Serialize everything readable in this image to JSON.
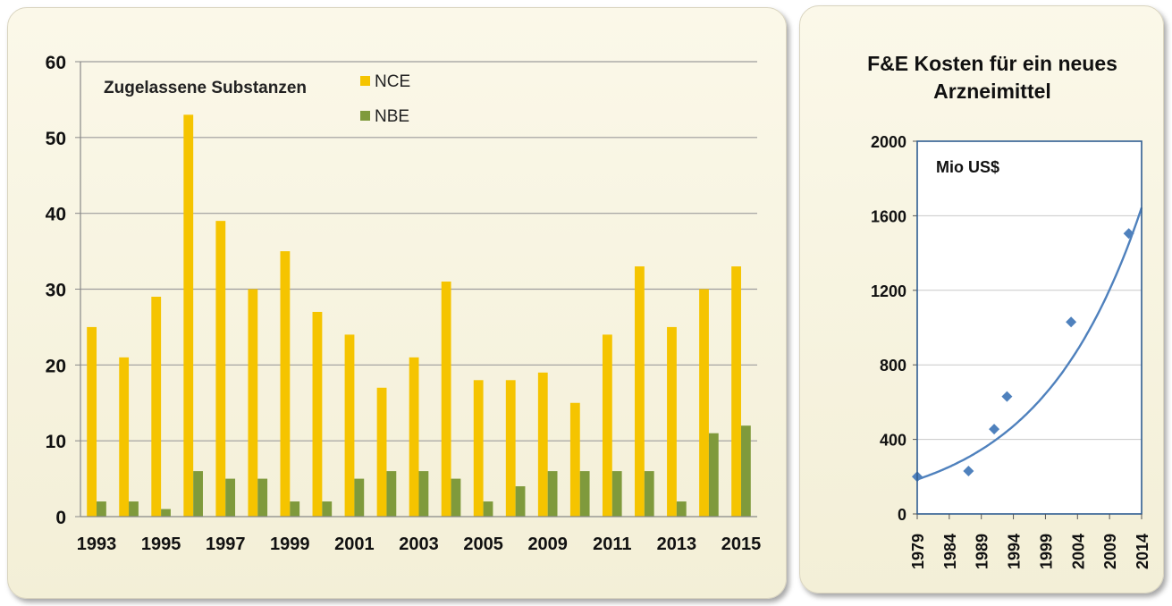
{
  "chart_data": [
    {
      "type": "bar",
      "title": "",
      "annotation": "Zugelassene Substanzen",
      "categories": [
        "1993",
        "1994",
        "1995",
        "1996",
        "1997",
        "1998",
        "1999",
        "2000",
        "2001",
        "2002",
        "2003",
        "2004",
        "2005",
        "2006",
        "2009",
        "2010",
        "2011",
        "2012",
        "2013",
        "2014",
        "2015"
      ],
      "x_tick_labels": [
        "1993",
        "1995",
        "1997",
        "1999",
        "2001",
        "2003",
        "2005",
        "2009",
        "2011",
        "2013",
        "2015"
      ],
      "series": [
        {
          "name": "NCE",
          "color": "#f5c400",
          "values": [
            25,
            21,
            29,
            53,
            39,
            30,
            35,
            27,
            24,
            17,
            21,
            31,
            18,
            18,
            19,
            15,
            24,
            33,
            25,
            30,
            33
          ]
        },
        {
          "name": "NBE",
          "color": "#7f9a3c",
          "values": [
            2,
            2,
            1,
            6,
            5,
            5,
            2,
            2,
            5,
            6,
            6,
            5,
            2,
            4,
            6,
            6,
            6,
            6,
            2,
            11,
            12
          ]
        }
      ],
      "ylim": [
        0,
        60
      ],
      "yticks": [
        0,
        10,
        20,
        30,
        40,
        50,
        60
      ],
      "grid": true,
      "legend": "top-center"
    },
    {
      "type": "scatter",
      "title": "F&E Kosten für ein neues Arzneimittel",
      "title_lines": [
        "F&E Kosten für ein neues",
        "Arzneimittel"
      ],
      "annotation": "Mio US$",
      "points": [
        {
          "x": 1979,
          "y": 200
        },
        {
          "x": 1987,
          "y": 230
        },
        {
          "x": 1991,
          "y": 455
        },
        {
          "x": 1993,
          "y": 630
        },
        {
          "x": 2003,
          "y": 1030
        },
        {
          "x": 2012,
          "y": 1505
        }
      ],
      "trendline": {
        "type": "exponential",
        "a": 185,
        "b": 0.0624,
        "x0": 1979
      },
      "xlim": [
        1979,
        2014
      ],
      "xticks": [
        1979,
        1984,
        1989,
        1994,
        1999,
        2004,
        2009,
        2014
      ],
      "ylim": [
        0,
        2000
      ],
      "yticks": [
        0,
        400,
        800,
        1200,
        1600,
        2000
      ],
      "color": "#4f81bd",
      "grid": true
    }
  ]
}
